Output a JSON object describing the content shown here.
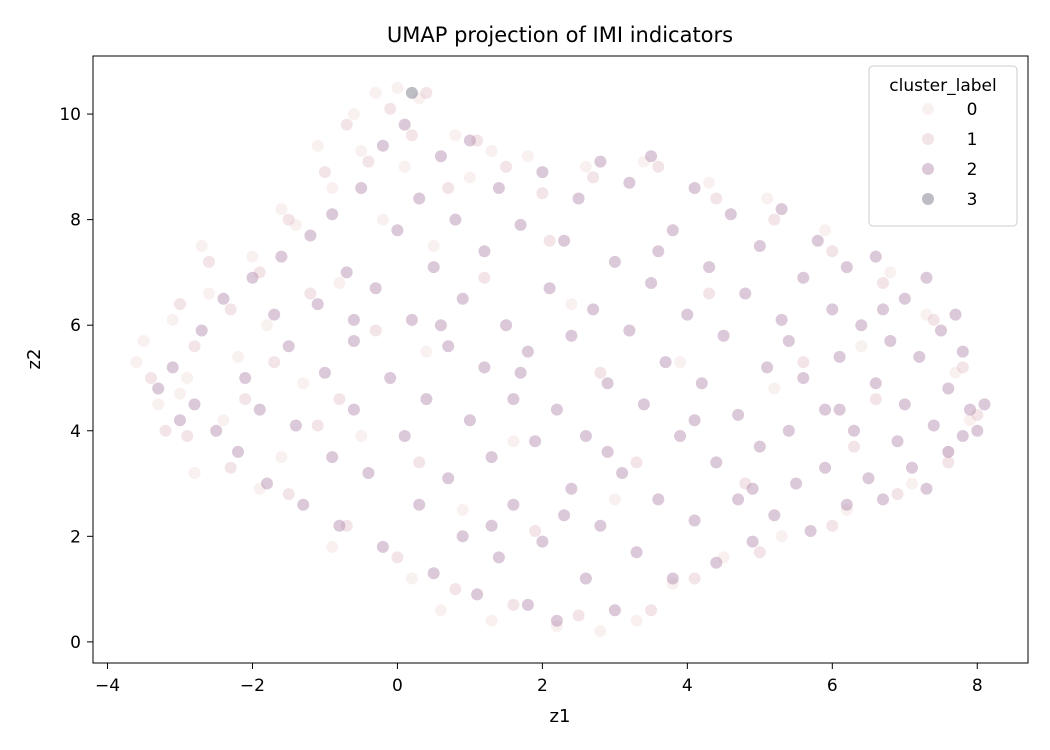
{
  "chart_data": {
    "type": "scatter",
    "title": "UMAP projection of IMI indicators",
    "xlabel": "z1",
    "ylabel": "z2",
    "xlim": [
      -4.2,
      8.7
    ],
    "ylim": [
      -0.4,
      11.1
    ],
    "xticks": [
      -4,
      -2,
      0,
      2,
      4,
      6,
      8
    ],
    "yticks": [
      0,
      2,
      4,
      6,
      8,
      10
    ],
    "x_tick_labels": [
      "−4",
      "−2",
      "0",
      "2",
      "4",
      "6",
      "8"
    ],
    "y_tick_labels": [
      "0",
      "2",
      "4",
      "6",
      "8",
      "10"
    ],
    "grid": false,
    "point_alpha": 0.4,
    "legend": {
      "title": "cluster_label",
      "placement": "top-right",
      "entries": [
        "0",
        "1",
        "2",
        "3"
      ]
    },
    "series": [
      {
        "name": "0",
        "color": "#f1dcd9",
        "points": [
          [
            -3.6,
            5.3
          ],
          [
            -3.5,
            5.7
          ],
          [
            -3.3,
            4.5
          ],
          [
            -3.1,
            6.1
          ],
          [
            -2.9,
            5.0
          ],
          [
            -2.7,
            7.5
          ],
          [
            -2.6,
            6.6
          ],
          [
            -2.4,
            4.2
          ],
          [
            -2.2,
            5.4
          ],
          [
            -2.0,
            7.3
          ],
          [
            -1.8,
            6.0
          ],
          [
            -1.6,
            8.2
          ],
          [
            -1.4,
            7.9
          ],
          [
            -1.3,
            4.9
          ],
          [
            -1.1,
            9.4
          ],
          [
            -0.9,
            8.6
          ],
          [
            -0.8,
            6.8
          ],
          [
            -0.6,
            10.0
          ],
          [
            -0.5,
            9.3
          ],
          [
            -0.3,
            10.4
          ],
          [
            -0.2,
            8.0
          ],
          [
            0.0,
            10.5
          ],
          [
            0.1,
            9.0
          ],
          [
            0.3,
            10.3
          ],
          [
            0.5,
            7.5
          ],
          [
            0.8,
            9.6
          ],
          [
            1.0,
            8.8
          ],
          [
            1.3,
            9.3
          ],
          [
            0.4,
            5.5
          ],
          [
            -0.5,
            3.9
          ],
          [
            -1.6,
            3.5
          ],
          [
            -2.8,
            3.2
          ],
          [
            -3.0,
            4.7
          ],
          [
            -1.9,
            2.9
          ],
          [
            -0.9,
            1.8
          ],
          [
            0.2,
            1.2
          ],
          [
            0.6,
            0.6
          ],
          [
            1.3,
            0.4
          ],
          [
            2.2,
            0.3
          ],
          [
            2.8,
            0.2
          ],
          [
            3.3,
            0.4
          ],
          [
            3.8,
            1.1
          ],
          [
            4.5,
            1.6
          ],
          [
            5.3,
            2.0
          ],
          [
            6.2,
            2.5
          ],
          [
            7.1,
            3.0
          ],
          [
            7.6,
            3.6
          ],
          [
            7.9,
            4.2
          ],
          [
            7.7,
            5.1
          ],
          [
            7.3,
            6.2
          ],
          [
            6.8,
            7.0
          ],
          [
            5.9,
            7.8
          ],
          [
            5.1,
            8.4
          ],
          [
            4.3,
            8.7
          ],
          [
            3.4,
            9.1
          ],
          [
            2.6,
            9.0
          ],
          [
            1.8,
            9.2
          ],
          [
            2.4,
            6.4
          ],
          [
            3.9,
            5.3
          ],
          [
            5.2,
            4.8
          ],
          [
            6.4,
            5.6
          ],
          [
            1.6,
            3.8
          ],
          [
            3.0,
            2.7
          ],
          [
            0.9,
            2.5
          ]
        ]
      },
      {
        "name": "1",
        "color": "#e0bcc5",
        "points": [
          [
            -3.4,
            5.0
          ],
          [
            -3.2,
            4.0
          ],
          [
            -3.0,
            6.4
          ],
          [
            -2.8,
            5.6
          ],
          [
            -2.6,
            7.2
          ],
          [
            -2.3,
            6.3
          ],
          [
            -2.1,
            4.6
          ],
          [
            -1.9,
            7.0
          ],
          [
            -1.7,
            5.3
          ],
          [
            -1.5,
            8.0
          ],
          [
            -1.2,
            6.6
          ],
          [
            -1.0,
            8.9
          ],
          [
            -0.8,
            4.6
          ],
          [
            -0.7,
            9.8
          ],
          [
            -0.4,
            9.1
          ],
          [
            -0.1,
            10.1
          ],
          [
            0.2,
            9.6
          ],
          [
            0.4,
            10.4
          ],
          [
            0.7,
            8.6
          ],
          [
            1.1,
            9.5
          ],
          [
            1.5,
            9.0
          ],
          [
            2.0,
            8.5
          ],
          [
            2.7,
            8.8
          ],
          [
            3.6,
            9.0
          ],
          [
            4.4,
            8.4
          ],
          [
            5.2,
            8.0
          ],
          [
            6.0,
            7.4
          ],
          [
            6.7,
            6.8
          ],
          [
            7.4,
            6.1
          ],
          [
            7.8,
            5.2
          ],
          [
            8.0,
            4.3
          ],
          [
            7.6,
            3.4
          ],
          [
            6.9,
            2.8
          ],
          [
            6.0,
            2.2
          ],
          [
            5.0,
            1.7
          ],
          [
            4.1,
            1.2
          ],
          [
            3.5,
            0.6
          ],
          [
            2.5,
            0.5
          ],
          [
            1.6,
            0.7
          ],
          [
            0.8,
            1.0
          ],
          [
            0.0,
            1.6
          ],
          [
            -0.7,
            2.2
          ],
          [
            -1.5,
            2.8
          ],
          [
            -2.3,
            3.3
          ],
          [
            -2.9,
            3.9
          ],
          [
            -0.3,
            5.9
          ],
          [
            1.2,
            6.9
          ],
          [
            2.8,
            5.1
          ],
          [
            4.3,
            6.6
          ],
          [
            5.6,
            5.3
          ],
          [
            6.3,
            3.7
          ],
          [
            3.3,
            3.4
          ],
          [
            1.9,
            2.1
          ],
          [
            0.3,
            3.4
          ],
          [
            -1.1,
            4.1
          ],
          [
            4.8,
            3.0
          ],
          [
            6.6,
            4.6
          ],
          [
            2.1,
            7.6
          ]
        ]
      },
      {
        "name": "2",
        "color": "#a479a0",
        "points": [
          [
            -3.3,
            4.8
          ],
          [
            -3.1,
            5.2
          ],
          [
            -3.0,
            4.2
          ],
          [
            -2.8,
            4.5
          ],
          [
            -2.7,
            5.9
          ],
          [
            -2.5,
            4.0
          ],
          [
            -2.4,
            6.5
          ],
          [
            -2.2,
            3.6
          ],
          [
            -2.1,
            5.0
          ],
          [
            -2.0,
            6.9
          ],
          [
            -1.9,
            4.4
          ],
          [
            -1.8,
            3.0
          ],
          [
            -1.7,
            6.2
          ],
          [
            -1.6,
            7.3
          ],
          [
            -1.5,
            5.6
          ],
          [
            -1.4,
            4.1
          ],
          [
            -1.3,
            2.6
          ],
          [
            -1.2,
            7.7
          ],
          [
            -1.1,
            6.4
          ],
          [
            -1.0,
            5.1
          ],
          [
            -0.9,
            3.5
          ],
          [
            -0.9,
            8.1
          ],
          [
            -0.8,
            2.2
          ],
          [
            -0.7,
            7.0
          ],
          [
            -0.6,
            5.7
          ],
          [
            -0.6,
            4.4
          ],
          [
            -0.5,
            8.6
          ],
          [
            -0.4,
            3.2
          ],
          [
            -0.3,
            6.7
          ],
          [
            -0.2,
            9.4
          ],
          [
            -0.2,
            1.8
          ],
          [
            -0.1,
            5.0
          ],
          [
            0.0,
            7.8
          ],
          [
            0.1,
            3.9
          ],
          [
            0.1,
            9.8
          ],
          [
            0.2,
            6.1
          ],
          [
            0.3,
            2.6
          ],
          [
            0.3,
            8.4
          ],
          [
            0.4,
            4.6
          ],
          [
            0.5,
            1.3
          ],
          [
            0.5,
            7.1
          ],
          [
            0.6,
            9.2
          ],
          [
            0.7,
            5.6
          ],
          [
            0.7,
            3.1
          ],
          [
            0.8,
            8.0
          ],
          [
            0.9,
            2.0
          ],
          [
            0.9,
            6.5
          ],
          [
            1.0,
            4.2
          ],
          [
            1.0,
            9.5
          ],
          [
            1.1,
            0.9
          ],
          [
            1.2,
            7.4
          ],
          [
            1.2,
            5.2
          ],
          [
            1.3,
            3.5
          ],
          [
            1.4,
            8.6
          ],
          [
            1.4,
            1.6
          ],
          [
            1.5,
            6.0
          ],
          [
            1.6,
            4.6
          ],
          [
            1.6,
            2.6
          ],
          [
            1.7,
            7.9
          ],
          [
            1.8,
            0.7
          ],
          [
            1.8,
            5.5
          ],
          [
            1.9,
            3.8
          ],
          [
            2.0,
            8.9
          ],
          [
            2.0,
            1.9
          ],
          [
            2.1,
            6.7
          ],
          [
            2.2,
            4.4
          ],
          [
            2.2,
            0.4
          ],
          [
            2.3,
            7.6
          ],
          [
            2.4,
            2.9
          ],
          [
            2.4,
            5.8
          ],
          [
            2.5,
            8.4
          ],
          [
            2.6,
            1.2
          ],
          [
            2.6,
            3.9
          ],
          [
            2.7,
            6.3
          ],
          [
            2.8,
            9.1
          ],
          [
            2.8,
            2.2
          ],
          [
            2.9,
            4.9
          ],
          [
            3.0,
            7.2
          ],
          [
            3.0,
            0.6
          ],
          [
            3.1,
            3.2
          ],
          [
            3.2,
            5.9
          ],
          [
            3.2,
            8.7
          ],
          [
            3.3,
            1.7
          ],
          [
            3.4,
            4.5
          ],
          [
            3.5,
            6.8
          ],
          [
            3.5,
            9.2
          ],
          [
            3.6,
            2.7
          ],
          [
            3.7,
            5.3
          ],
          [
            3.8,
            7.8
          ],
          [
            3.8,
            1.2
          ],
          [
            3.9,
            3.9
          ],
          [
            4.0,
            6.2
          ],
          [
            4.1,
            8.6
          ],
          [
            4.1,
            2.3
          ],
          [
            4.2,
            4.9
          ],
          [
            4.3,
            7.1
          ],
          [
            4.4,
            1.5
          ],
          [
            4.4,
            3.4
          ],
          [
            4.5,
            5.8
          ],
          [
            4.6,
            8.1
          ],
          [
            4.7,
            2.7
          ],
          [
            4.7,
            4.3
          ],
          [
            4.8,
            6.6
          ],
          [
            4.9,
            1.9
          ],
          [
            5.0,
            3.7
          ],
          [
            5.0,
            7.5
          ],
          [
            5.1,
            5.2
          ],
          [
            5.2,
            2.4
          ],
          [
            5.3,
            6.1
          ],
          [
            5.3,
            8.2
          ],
          [
            5.4,
            4.0
          ],
          [
            5.5,
            3.0
          ],
          [
            5.6,
            6.9
          ],
          [
            5.6,
            5.0
          ],
          [
            5.7,
            2.1
          ],
          [
            5.8,
            7.6
          ],
          [
            5.9,
            4.4
          ],
          [
            5.9,
            3.3
          ],
          [
            6.0,
            6.3
          ],
          [
            6.1,
            5.4
          ],
          [
            6.2,
            2.6
          ],
          [
            6.2,
            7.1
          ],
          [
            6.3,
            4.0
          ],
          [
            6.4,
            6.0
          ],
          [
            6.5,
            3.1
          ],
          [
            6.6,
            7.3
          ],
          [
            6.6,
            4.9
          ],
          [
            6.7,
            2.7
          ],
          [
            6.8,
            5.7
          ],
          [
            6.9,
            3.8
          ],
          [
            7.0,
            6.5
          ],
          [
            7.0,
            4.5
          ],
          [
            7.1,
            3.3
          ],
          [
            7.2,
            5.4
          ],
          [
            7.3,
            6.9
          ],
          [
            7.3,
            2.9
          ],
          [
            7.4,
            4.1
          ],
          [
            7.5,
            5.9
          ],
          [
            7.6,
            3.6
          ],
          [
            7.6,
            4.8
          ],
          [
            7.7,
            6.2
          ],
          [
            7.8,
            3.9
          ],
          [
            7.8,
            5.5
          ],
          [
            7.9,
            4.4
          ],
          [
            8.0,
            4.0
          ],
          [
            8.1,
            4.5
          ],
          [
            6.7,
            6.3
          ],
          [
            5.4,
            5.7
          ],
          [
            4.1,
            4.2
          ],
          [
            2.9,
            3.6
          ],
          [
            1.7,
            5.1
          ],
          [
            0.6,
            6.0
          ],
          [
            -0.6,
            6.1
          ],
          [
            3.6,
            7.4
          ],
          [
            2.3,
            2.4
          ],
          [
            4.9,
            2.9
          ],
          [
            6.1,
            4.4
          ],
          [
            1.3,
            2.2
          ]
        ]
      },
      {
        "name": "3",
        "color": "#5a5a6e",
        "points": [
          [
            0.2,
            10.4
          ]
        ]
      }
    ]
  }
}
